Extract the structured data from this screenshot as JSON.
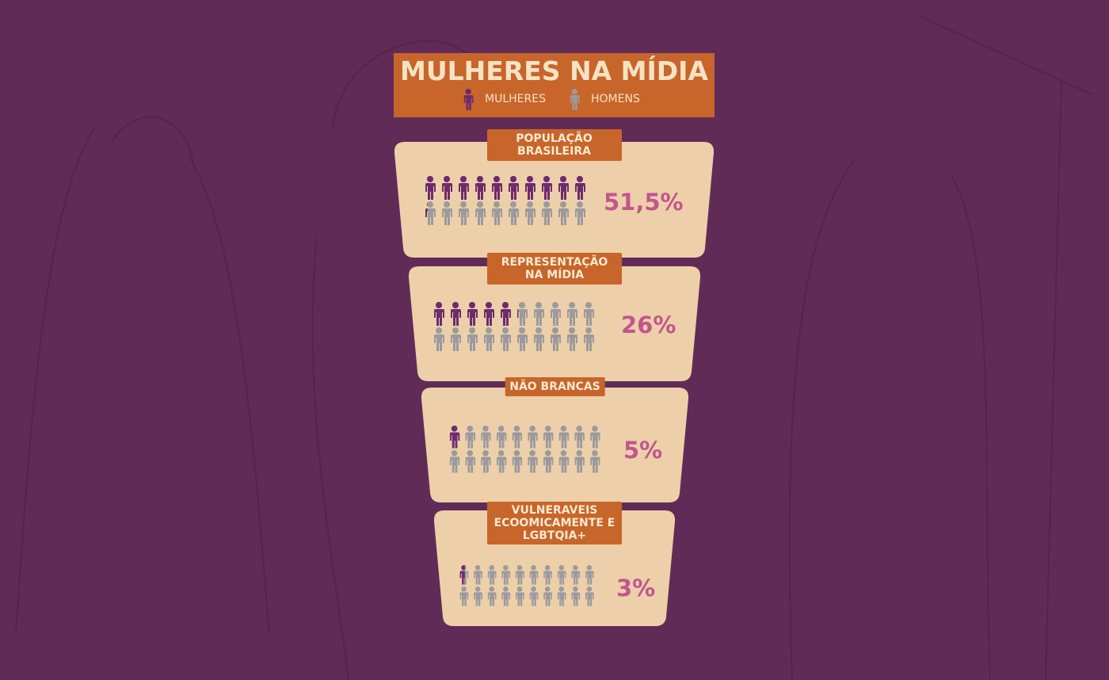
{
  "chart_data": {
    "type": "pictogram",
    "title": "MULHERES NA MÍDIA",
    "series": [
      {
        "name": "MULHERES",
        "color": "#6e2a6f"
      },
      {
        "name": "HOMENS",
        "color": "#9b9a9d"
      }
    ],
    "categories": [
      "POPULAÇÃO BRASILEIRA",
      "REPRESENTAÇÃO NA MÍDIA",
      "NÃO BRANCAS",
      "VULNERAVEIS ECOOMICAMENTE E LGBTQIA+"
    ],
    "values": [
      51.5,
      26,
      5,
      3
    ],
    "value_labels": [
      "51,5%",
      "26%",
      "5%",
      "3%"
    ]
  }
}
